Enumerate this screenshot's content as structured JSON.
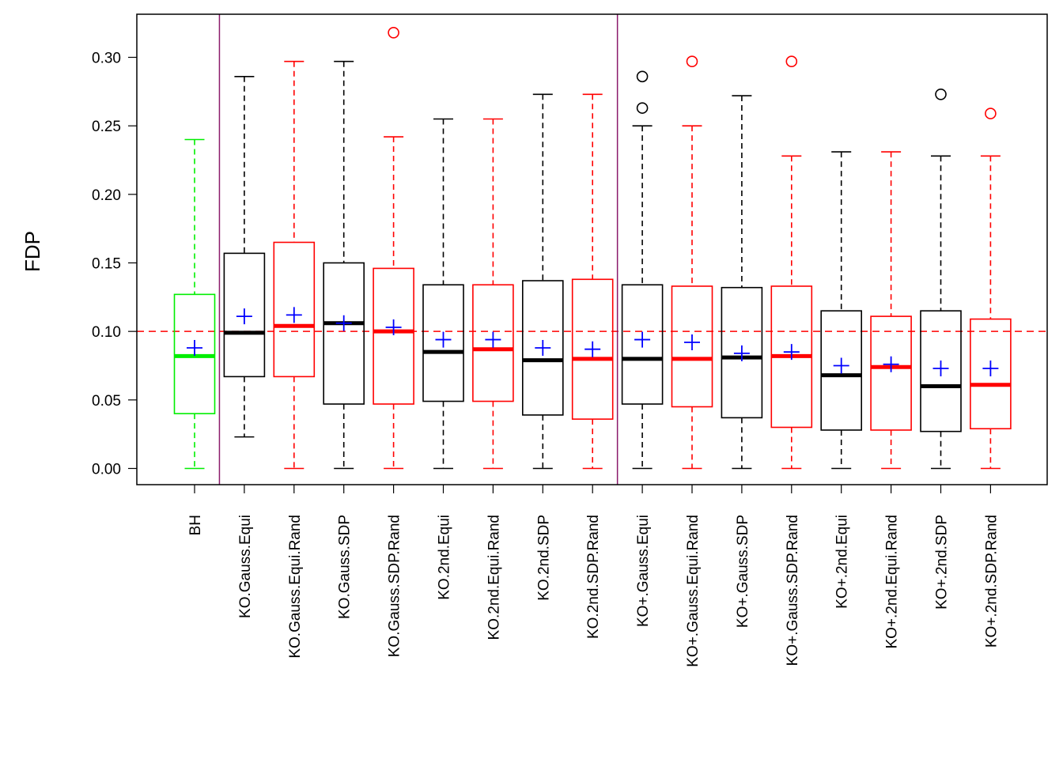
{
  "chart_data": {
    "type": "boxplot",
    "ylabel": "FDP",
    "xlabel": "",
    "title": "",
    "ylim": [
      -0.012,
      0.32
    ],
    "yticks": [
      "0.00",
      "0.05",
      "0.10",
      "0.15",
      "0.20",
      "0.25",
      "0.30"
    ],
    "reference_line": {
      "y": 0.1,
      "color": "#ff0000",
      "style": "dashed"
    },
    "group_separators_after": [
      "BH",
      "KO.2nd.SDP.Rand"
    ],
    "separator_color": "#8b1a6b",
    "mean_marker": {
      "symbol": "+",
      "color": "#0000ff"
    },
    "colors": {
      "green": "#00ee00",
      "black": "#000000",
      "red": "#ff0000"
    },
    "boxes": [
      {
        "label": "BH",
        "color": "green",
        "min": 0.0,
        "q1": 0.04,
        "median": 0.082,
        "q3": 0.127,
        "max": 0.24,
        "mean": 0.088,
        "outliers": []
      },
      {
        "label": "KO.Gauss.Equi",
        "color": "black",
        "min": 0.023,
        "q1": 0.067,
        "median": 0.099,
        "q3": 0.157,
        "max": 0.286,
        "mean": 0.111,
        "outliers": []
      },
      {
        "label": "KO.Gauss.Equi.Rand",
        "color": "red",
        "min": 0.0,
        "q1": 0.067,
        "median": 0.104,
        "q3": 0.165,
        "max": 0.297,
        "mean": 0.112,
        "outliers": []
      },
      {
        "label": "KO.Gauss.SDP",
        "color": "black",
        "min": 0.0,
        "q1": 0.047,
        "median": 0.106,
        "q3": 0.15,
        "max": 0.297,
        "mean": 0.106,
        "outliers": []
      },
      {
        "label": "KO.Gauss.SDP.Rand",
        "color": "red",
        "min": 0.0,
        "q1": 0.047,
        "median": 0.1,
        "q3": 0.146,
        "max": 0.242,
        "mean": 0.103,
        "outliers": [
          0.318
        ]
      },
      {
        "label": "KO.2nd.Equi",
        "color": "black",
        "min": 0.0,
        "q1": 0.049,
        "median": 0.085,
        "q3": 0.134,
        "max": 0.255,
        "mean": 0.094,
        "outliers": []
      },
      {
        "label": "KO.2nd.Equi.Rand",
        "color": "red",
        "min": 0.0,
        "q1": 0.049,
        "median": 0.087,
        "q3": 0.134,
        "max": 0.255,
        "mean": 0.094,
        "outliers": []
      },
      {
        "label": "KO.2nd.SDP",
        "color": "black",
        "min": 0.0,
        "q1": 0.039,
        "median": 0.079,
        "q3": 0.137,
        "max": 0.273,
        "mean": 0.088,
        "outliers": []
      },
      {
        "label": "KO.2nd.SDP.Rand",
        "color": "red",
        "min": 0.0,
        "q1": 0.036,
        "median": 0.08,
        "q3": 0.138,
        "max": 0.273,
        "mean": 0.087,
        "outliers": []
      },
      {
        "label": "KO+.Gauss.Equi",
        "color": "black",
        "min": 0.0,
        "q1": 0.047,
        "median": 0.08,
        "q3": 0.134,
        "max": 0.25,
        "mean": 0.094,
        "outliers": [
          0.263,
          0.286
        ]
      },
      {
        "label": "KO+.Gauss.Equi.Rand",
        "color": "red",
        "min": 0.0,
        "q1": 0.045,
        "median": 0.08,
        "q3": 0.133,
        "max": 0.25,
        "mean": 0.092,
        "outliers": [
          0.297
        ]
      },
      {
        "label": "KO+.Gauss.SDP",
        "color": "black",
        "min": 0.0,
        "q1": 0.037,
        "median": 0.081,
        "q3": 0.132,
        "max": 0.272,
        "mean": 0.084,
        "outliers": []
      },
      {
        "label": "KO+.Gauss.SDP.Rand",
        "color": "red",
        "min": 0.0,
        "q1": 0.03,
        "median": 0.082,
        "q3": 0.133,
        "max": 0.228,
        "mean": 0.085,
        "outliers": [
          0.297
        ]
      },
      {
        "label": "KO+.2nd.Equi",
        "color": "black",
        "min": 0.0,
        "q1": 0.028,
        "median": 0.068,
        "q3": 0.115,
        "max": 0.231,
        "mean": 0.075,
        "outliers": []
      },
      {
        "label": "KO+.2nd.Equi.Rand",
        "color": "red",
        "min": 0.0,
        "q1": 0.028,
        "median": 0.074,
        "q3": 0.111,
        "max": 0.231,
        "mean": 0.076,
        "outliers": []
      },
      {
        "label": "KO+.2nd.SDP",
        "color": "black",
        "min": 0.0,
        "q1": 0.027,
        "median": 0.06,
        "q3": 0.115,
        "max": 0.228,
        "mean": 0.073,
        "outliers": [
          0.273
        ]
      },
      {
        "label": "KO+.2nd.SDP.Rand",
        "color": "red",
        "min": 0.0,
        "q1": 0.029,
        "median": 0.061,
        "q3": 0.109,
        "max": 0.228,
        "mean": 0.073,
        "outliers": [
          0.259
        ]
      }
    ]
  }
}
